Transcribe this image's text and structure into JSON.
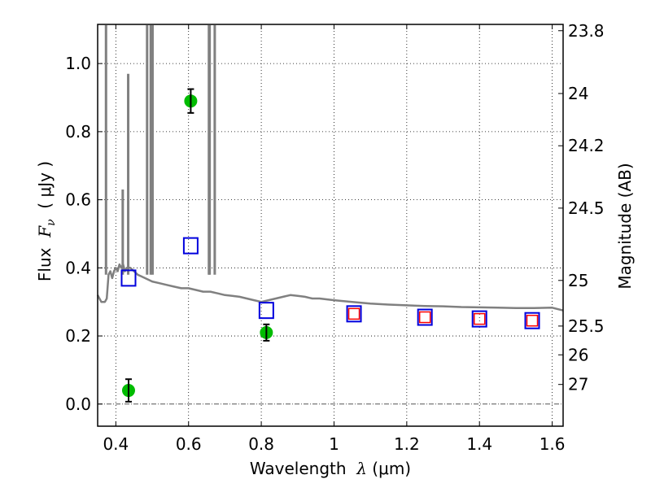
{
  "chart_data": {
    "type": "scatter",
    "title": "",
    "xlabel": "Wavelength  λ (μm)",
    "ylabel": "Flux  F_ν  ( μJy )",
    "ylabel_parts": {
      "prefix": "Flux  ",
      "math": "F",
      "sub": "ν",
      "suffix": "  ( μJy )"
    },
    "xlabel_parts": {
      "prefix": "Wavelength  ",
      "math": "λ",
      "suffix": " (μm)"
    },
    "y2label": "Magnitude (AB)",
    "xlim": [
      0.35,
      1.63
    ],
    "ylim": [
      -0.065,
      1.115
    ],
    "grid": true,
    "x_ticks": [
      0.4,
      0.6,
      0.8,
      1.0,
      1.2,
      1.4,
      1.6
    ],
    "x_tick_labels": [
      "0.4",
      "0.6",
      "0.8",
      "1",
      "1.2",
      "1.4",
      "1.6"
    ],
    "y_ticks": [
      0.0,
      0.2,
      0.4,
      0.6,
      0.8,
      1.0
    ],
    "y_tick_labels": [
      "0.0",
      "0.2",
      "0.4",
      "0.6",
      "0.8",
      "1.0"
    ],
    "y2_ticks": [
      {
        "label": "23.8",
        "mag": 23.8
      },
      {
        "label": "24",
        "mag": 24.0
      },
      {
        "label": "24.2",
        "mag": 24.2
      },
      {
        "label": "24.5",
        "mag": 24.5
      },
      {
        "label": "25",
        "mag": 25.0
      },
      {
        "label": "25.5",
        "mag": 25.5
      },
      {
        "label": "26",
        "mag": 26.0
      },
      {
        "label": "27",
        "mag": 27.0
      }
    ],
    "zero_line": 0.0,
    "colors": {
      "spectrum": "#808080",
      "observed": "#00bb00",
      "model_blue": "#0000dd",
      "model_red": "#ff0000",
      "errorbar": "#000000"
    },
    "series": [
      {
        "name": "model-spectrum",
        "type": "line",
        "x": [
          0.35,
          0.36,
          0.37,
          0.375,
          0.38,
          0.385,
          0.39,
          0.395,
          0.4,
          0.405,
          0.41,
          0.415,
          0.42,
          0.425,
          0.43,
          0.44,
          0.45,
          0.46,
          0.47,
          0.48,
          0.49,
          0.5,
          0.52,
          0.54,
          0.56,
          0.58,
          0.6,
          0.62,
          0.64,
          0.66,
          0.68,
          0.7,
          0.72,
          0.74,
          0.76,
          0.78,
          0.8,
          0.82,
          0.84,
          0.86,
          0.88,
          0.9,
          0.92,
          0.94,
          0.96,
          1.0,
          1.05,
          1.1,
          1.15,
          1.2,
          1.25,
          1.3,
          1.35,
          1.4,
          1.45,
          1.5,
          1.55,
          1.6,
          1.63
        ],
        "y": [
          0.32,
          0.3,
          0.3,
          0.31,
          0.38,
          0.39,
          0.37,
          0.39,
          0.4,
          0.39,
          0.41,
          0.4,
          0.41,
          0.39,
          0.4,
          0.4,
          0.39,
          0.38,
          0.375,
          0.37,
          0.365,
          0.36,
          0.355,
          0.35,
          0.345,
          0.34,
          0.34,
          0.335,
          0.33,
          0.33,
          0.325,
          0.32,
          0.318,
          0.315,
          0.31,
          0.305,
          0.3,
          0.305,
          0.31,
          0.315,
          0.32,
          0.318,
          0.315,
          0.31,
          0.31,
          0.305,
          0.3,
          0.295,
          0.292,
          0.29,
          0.288,
          0.287,
          0.285,
          0.284,
          0.283,
          0.282,
          0.282,
          0.283,
          0.275
        ]
      },
      {
        "name": "emission-lines",
        "type": "lines",
        "x": [
          0.373,
          0.419,
          0.434,
          0.486,
          0.496,
          0.501,
          0.656,
          0.658,
          0.672
        ],
        "peak": [
          1.115,
          0.63,
          0.97,
          1.115,
          1.115,
          1.115,
          1.115,
          1.115,
          1.115
        ]
      },
      {
        "name": "observed-photometry",
        "type": "errorbar",
        "marker": "circle",
        "x": [
          0.435,
          0.606,
          0.814
        ],
        "y": [
          0.04,
          0.89,
          0.21
        ],
        "yerr": [
          0.033,
          0.035,
          0.024
        ]
      },
      {
        "name": "model-photometry-blue",
        "type": "scatter",
        "marker": "square",
        "x": [
          0.435,
          0.606,
          0.814,
          1.055,
          1.25,
          1.4,
          1.545
        ],
        "y": [
          0.37,
          0.465,
          0.275,
          0.265,
          0.255,
          0.25,
          0.245
        ]
      },
      {
        "name": "model-photometry-red",
        "type": "scatter",
        "marker": "square",
        "x": [
          1.055,
          1.25,
          1.4,
          1.545
        ],
        "y": [
          0.265,
          0.255,
          0.25,
          0.245
        ]
      }
    ]
  }
}
